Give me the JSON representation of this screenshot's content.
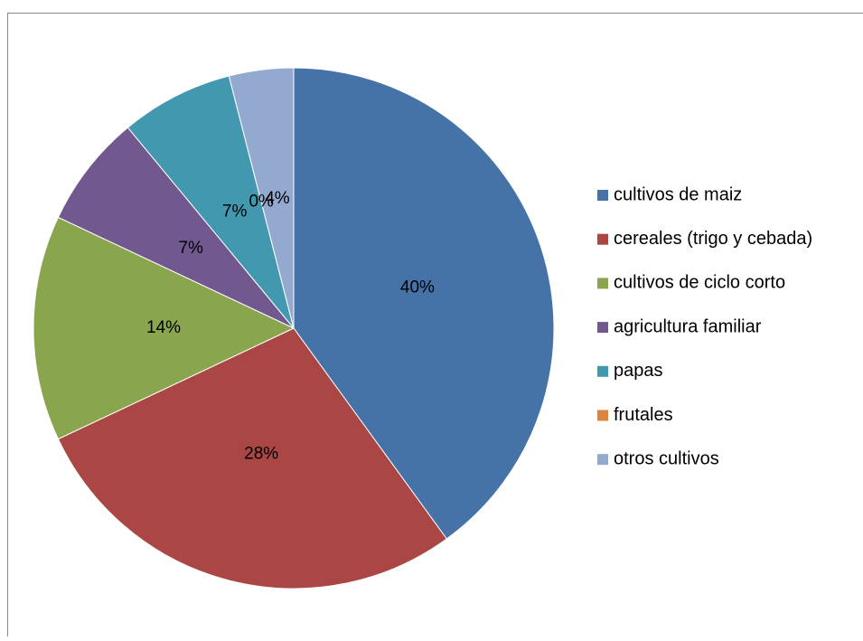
{
  "chart_data": {
    "type": "pie",
    "categories": [
      "cultivos de maiz",
      "cereales (trigo y cebada)",
      "cultivos de ciclo corto",
      "agricultura familiar",
      "papas",
      "frutales",
      "otros cultivos"
    ],
    "values": [
      40,
      28,
      14,
      7,
      7,
      0,
      4
    ],
    "value_labels": [
      "40%",
      "28%",
      "14%",
      "7%",
      "7%",
      "0%",
      "4%"
    ],
    "colors": [
      "#4572a7",
      "#aa4643",
      "#89a54e",
      "#71588f",
      "#4198af",
      "#db843d",
      "#93a9cf"
    ],
    "legend": "right"
  }
}
